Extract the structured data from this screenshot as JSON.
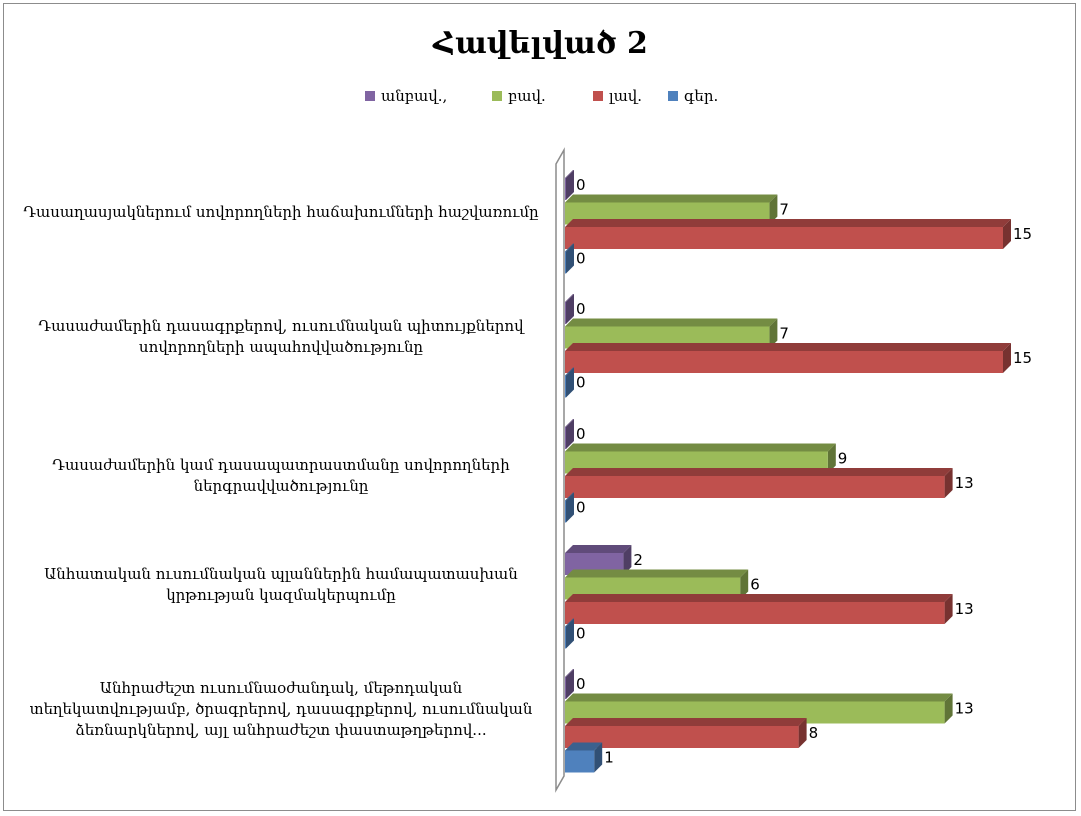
{
  "chart_data": {
    "type": "bar",
    "orientation": "horizontal",
    "title": "Հավելված 2",
    "categories": [
      "Դասաղասյակներում սովորողների հաճախումների հաշվառումը",
      "Դասաժամերին դասագրքերով, ուսումնական պիտույքներով սովորողների ապահովվածությունը",
      "Դասաժամերին կամ դասապատրաստմանը սովորողների ներգրավվածությունը",
      "Անհատական ուսումնական պլաններին համապատասխան կրթության կազմակերպումը",
      "Անհրաժեշտ ուսումնաօժանդակ, մեթոդական տեղեկատվությամբ, ծրագրերով, դասագրքերով, ուսումնական ձեռնարկներով, այլ անհրաժեշտ փաստաթղթերով..."
    ],
    "series": [
      {
        "name": "անբավ.",
        "color": "#8064a2",
        "values": [
          0,
          0,
          0,
          2,
          0
        ]
      },
      {
        "name": "բավ.",
        "color": "#9bbb59",
        "values": [
          7,
          7,
          9,
          6,
          13
        ]
      },
      {
        "name": "լավ.",
        "color": "#c0504d",
        "values": [
          15,
          15,
          13,
          13,
          8
        ]
      },
      {
        "name": "գեր.",
        "color": "#4f81bd",
        "values": [
          0,
          0,
          0,
          0,
          1
        ]
      }
    ],
    "legend_order": [
      "անբավ.",
      "բավ.",
      "լավ.",
      "գեր."
    ],
    "xlim": [
      0,
      16
    ],
    "grid": false,
    "legend_position": "top",
    "three_d": true
  },
  "legend_labels": [
    "անբավ.,",
    "բավ.",
    "լավ.",
    "գեր."
  ]
}
